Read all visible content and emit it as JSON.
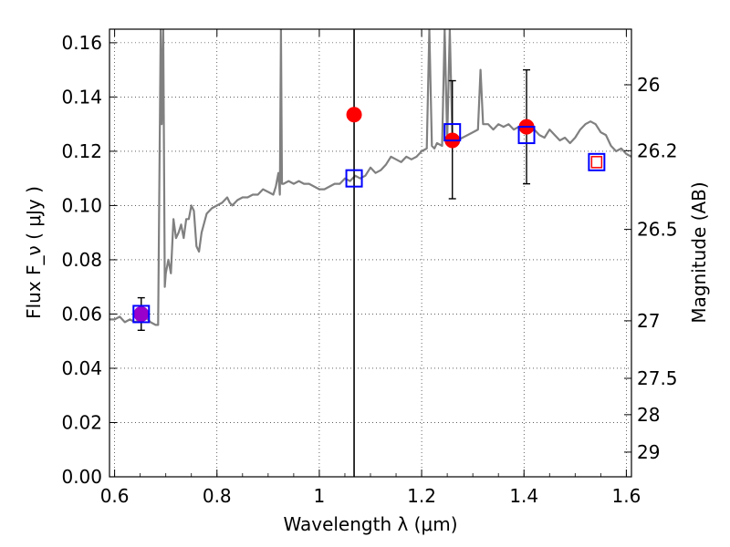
{
  "chart_data": {
    "type": "scatter",
    "xlabel": "Wavelength  λ (μm)",
    "ylabel": "Flux  F_ν  ( μJy )",
    "ylabel_right": "Magnitude (AB)",
    "xlim": [
      0.59,
      1.61
    ],
    "ylim": [
      0.0,
      0.165
    ],
    "grid": true,
    "x_ticks": [
      0.6,
      0.8,
      1.0,
      1.2,
      1.4,
      1.6
    ],
    "x_tick_labels": [
      "0.6",
      "0.8",
      "1",
      "1.2",
      "1.4",
      "1.6"
    ],
    "y_ticks": [
      0.0,
      0.02,
      0.04,
      0.06,
      0.08,
      0.1,
      0.12,
      0.14,
      0.16
    ],
    "y_tick_labels": [
      "0.00",
      "0.02",
      "0.04",
      "0.06",
      "0.08",
      "0.10",
      "0.12",
      "0.14",
      "0.16"
    ],
    "right_ticks": [
      {
        "label": "26",
        "flux": 0.1445
      },
      {
        "label": "26.2",
        "flux": 0.1202
      },
      {
        "label": "26.5",
        "flux": 0.0912
      },
      {
        "label": "27",
        "flux": 0.0575
      },
      {
        "label": "27.5",
        "flux": 0.0363
      },
      {
        "label": "28",
        "flux": 0.0229
      },
      {
        "label": "29",
        "flux": 0.0091
      }
    ],
    "vertical_line_x": 1.068,
    "model_spectrum": {
      "color": "#808080",
      "x": [
        0.59,
        0.6,
        0.61,
        0.62,
        0.63,
        0.64,
        0.65,
        0.66,
        0.67,
        0.68,
        0.685,
        0.69,
        0.692,
        0.695,
        0.698,
        0.7,
        0.705,
        0.71,
        0.715,
        0.72,
        0.725,
        0.73,
        0.735,
        0.74,
        0.745,
        0.75,
        0.755,
        0.76,
        0.765,
        0.77,
        0.78,
        0.79,
        0.8,
        0.81,
        0.82,
        0.825,
        0.83,
        0.84,
        0.85,
        0.86,
        0.87,
        0.88,
        0.89,
        0.9,
        0.91,
        0.915,
        0.92,
        0.923,
        0.925,
        0.927,
        0.93,
        0.94,
        0.95,
        0.96,
        0.97,
        0.98,
        0.99,
        1.0,
        1.01,
        1.02,
        1.03,
        1.04,
        1.05,
        1.06,
        1.07,
        1.08,
        1.09,
        1.1,
        1.11,
        1.12,
        1.13,
        1.14,
        1.15,
        1.16,
        1.165,
        1.17,
        1.18,
        1.19,
        1.2,
        1.21,
        1.215,
        1.22,
        1.225,
        1.23,
        1.24,
        1.245,
        1.25,
        1.255,
        1.26,
        1.27,
        1.28,
        1.29,
        1.3,
        1.31,
        1.315,
        1.32,
        1.33,
        1.34,
        1.35,
        1.36,
        1.37,
        1.38,
        1.39,
        1.4,
        1.41,
        1.42,
        1.43,
        1.44,
        1.45,
        1.46,
        1.47,
        1.48,
        1.49,
        1.5,
        1.51,
        1.52,
        1.53,
        1.54,
        1.55,
        1.56,
        1.57,
        1.58,
        1.59,
        1.6,
        1.61
      ],
      "y": [
        0.058,
        0.058,
        0.059,
        0.057,
        0.058,
        0.057,
        0.058,
        0.059,
        0.057,
        0.056,
        0.056,
        0.165,
        0.13,
        0.165,
        0.07,
        0.075,
        0.08,
        0.075,
        0.095,
        0.088,
        0.09,
        0.093,
        0.088,
        0.095,
        0.095,
        0.1,
        0.098,
        0.085,
        0.083,
        0.09,
        0.097,
        0.099,
        0.1,
        0.101,
        0.103,
        0.101,
        0.1,
        0.102,
        0.103,
        0.103,
        0.104,
        0.104,
        0.106,
        0.105,
        0.104,
        0.107,
        0.112,
        0.104,
        0.165,
        0.108,
        0.108,
        0.109,
        0.108,
        0.109,
        0.108,
        0.108,
        0.107,
        0.106,
        0.106,
        0.107,
        0.108,
        0.108,
        0.11,
        0.109,
        0.111,
        0.11,
        0.111,
        0.114,
        0.112,
        0.113,
        0.115,
        0.118,
        0.117,
        0.116,
        0.117,
        0.118,
        0.117,
        0.118,
        0.12,
        0.121,
        0.165,
        0.122,
        0.121,
        0.123,
        0.122,
        0.165,
        0.124,
        0.165,
        0.125,
        0.124,
        0.125,
        0.126,
        0.127,
        0.128,
        0.15,
        0.13,
        0.13,
        0.128,
        0.13,
        0.129,
        0.13,
        0.128,
        0.129,
        0.128,
        0.127,
        0.128,
        0.126,
        0.125,
        0.128,
        0.126,
        0.124,
        0.125,
        0.123,
        0.125,
        0.128,
        0.13,
        0.131,
        0.13,
        0.127,
        0.126,
        0.122,
        0.12,
        0.121,
        0.119,
        0.118
      ]
    },
    "series": [
      {
        "marker": "circle",
        "color": "#ff0000",
        "x": [
          1.068,
          1.26,
          1.405
        ],
        "y": [
          0.1335,
          0.124,
          0.129
        ]
      },
      {
        "marker": "circle",
        "color": "#9900cc",
        "x": [
          0.652
        ],
        "y": [
          0.06
        ]
      },
      {
        "marker": "square-open",
        "color": "#0000ff",
        "x": [
          0.652,
          1.068,
          1.26,
          1.405,
          1.542
        ],
        "y": [
          0.06,
          0.11,
          0.127,
          0.126,
          0.116
        ]
      },
      {
        "marker": "square-open-small",
        "color": "#ff0000",
        "x": [
          1.542
        ],
        "y": [
          0.116
        ]
      }
    ],
    "error_bars": [
      {
        "x": 0.652,
        "low": 0.054,
        "high": 0.066
      },
      {
        "x": 1.26,
        "low": 0.1025,
        "high": 0.146
      },
      {
        "x": 1.405,
        "low": 0.108,
        "high": 0.15
      }
    ]
  }
}
